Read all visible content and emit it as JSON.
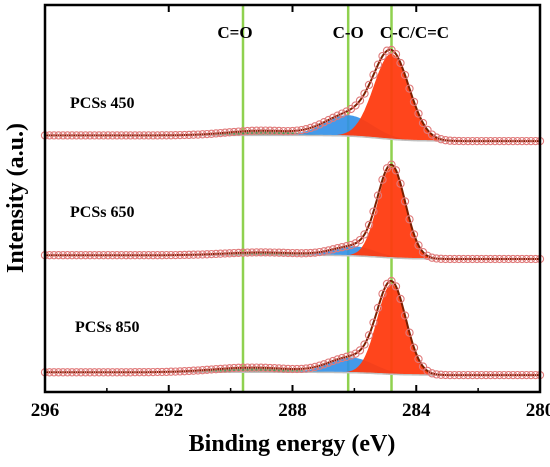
{
  "chart_data": {
    "type": "line",
    "title": "",
    "xlabel": "Binding energy (eV)",
    "ylabel": "Intensity (a.u.)",
    "x_reversed": true,
    "xlim": [
      296,
      280
    ],
    "x_ticks": [
      296,
      292,
      288,
      284,
      280
    ],
    "y_ticks_shown": false,
    "grid": false,
    "reference_lines": [
      {
        "label": "C=O",
        "x": 289.6,
        "color": "#8fd14f"
      },
      {
        "label": "C-O",
        "x": 286.2,
        "color": "#8fd14f"
      },
      {
        "label": "C-C/C=C",
        "x": 284.8,
        "color": "#8fd14f"
      }
    ],
    "component_colors": {
      "C-C/C=C": "#ff3b10",
      "C-O": "#2f8fe8",
      "C=O": "#2e9a4e",
      "envelope": "#7a1f00",
      "raw_points": "#e07a7a",
      "background": "#c0c0c0"
    },
    "series": [
      {
        "name": "PCSs 450",
        "baseline": [
          0.02,
          0.08
        ],
        "components": [
          {
            "label": "C-C/C=C",
            "center": 284.8,
            "height": 0.9,
            "fwhm": 1.35
          },
          {
            "label": "C-O",
            "center": 286.2,
            "height": 0.22,
            "fwhm": 1.8
          },
          {
            "label": "C=O",
            "center": 289.0,
            "height": 0.05,
            "fwhm": 2.6
          }
        ]
      },
      {
        "name": "PCSs 650",
        "baseline": [
          0.01,
          0.05
        ],
        "components": [
          {
            "label": "C-C/C=C",
            "center": 284.8,
            "height": 0.96,
            "fwhm": 1.05
          },
          {
            "label": "C-O",
            "center": 286.0,
            "height": 0.1,
            "fwhm": 1.6
          },
          {
            "label": "C=O",
            "center": 289.0,
            "height": 0.03,
            "fwhm": 2.8
          }
        ]
      },
      {
        "name": "PCSs 850",
        "baseline": [
          0.03,
          0.06
        ],
        "components": [
          {
            "label": "C-C/C=C",
            "center": 284.8,
            "height": 0.95,
            "fwhm": 1.1
          },
          {
            "label": "C-O",
            "center": 286.1,
            "height": 0.16,
            "fwhm": 1.7
          },
          {
            "label": "C=O",
            "center": 289.3,
            "height": 0.05,
            "fwhm": 3.0
          }
        ]
      }
    ]
  }
}
